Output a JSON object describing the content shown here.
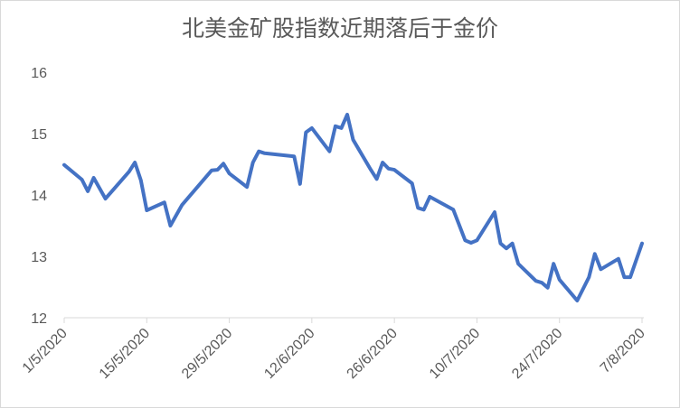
{
  "chart_data": {
    "type": "line",
    "title": "北美金矿股指数近期落后于金价",
    "x": [
      "1/5/2020",
      "4/5/2020",
      "5/5/2020",
      "6/5/2020",
      "8/5/2020",
      "12/5/2020",
      "13/5/2020",
      "14/5/2020",
      "15/5/2020",
      "18/5/2020",
      "19/5/2020",
      "21/5/2020",
      "26/5/2020",
      "27/5/2020",
      "28/5/2020",
      "29/5/2020",
      "1/6/2020",
      "2/6/2020",
      "3/6/2020",
      "4/6/2020",
      "9/6/2020",
      "10/6/2020",
      "11/6/2020",
      "12/6/2020",
      "15/6/2020",
      "16/6/2020",
      "17/6/2020",
      "18/6/2020",
      "19/6/2020",
      "22/6/2020",
      "23/6/2020",
      "24/6/2020",
      "25/6/2020",
      "26/6/2020",
      "29/6/2020",
      "30/6/2020",
      "1/7/2020",
      "2/7/2020",
      "6/7/2020",
      "8/7/2020",
      "9/7/2020",
      "10/7/2020",
      "13/7/2020",
      "14/7/2020",
      "15/7/2020",
      "16/7/2020",
      "17/7/2020",
      "20/7/2020",
      "21/7/2020",
      "22/7/2020",
      "23/7/2020",
      "24/7/2020",
      "27/7/2020",
      "29/7/2020",
      "30/7/2020",
      "31/7/2020",
      "3/8/2020",
      "4/8/2020",
      "5/8/2020",
      "7/8/2020"
    ],
    "series": [
      {
        "name": "北美金矿股指数",
        "color": "#4472c4",
        "values": [
          14.49,
          14.25,
          14.06,
          14.28,
          13.94,
          14.38,
          14.53,
          14.24,
          13.75,
          13.88,
          13.5,
          13.84,
          14.4,
          14.41,
          14.51,
          14.35,
          14.13,
          14.53,
          14.71,
          14.68,
          14.63,
          14.18,
          15.02,
          15.09,
          14.71,
          15.12,
          15.09,
          15.31,
          14.9,
          14.41,
          14.26,
          14.53,
          14.43,
          14.41,
          14.19,
          13.79,
          13.76,
          13.97,
          13.76,
          13.26,
          13.22,
          13.26,
          13.72,
          13.21,
          13.13,
          13.21,
          12.88,
          12.6,
          12.57,
          12.49,
          12.88,
          12.62,
          12.28,
          12.66,
          13.04,
          12.79,
          12.96,
          12.66,
          12.66,
          13.21
        ]
      }
    ],
    "xlim": [
      "1/5/2020",
      "7/8/2020"
    ],
    "xticks": [
      "1/5/2020",
      "15/5/2020",
      "29/5/2020",
      "12/6/2020",
      "26/6/2020",
      "10/7/2020",
      "24/7/2020",
      "7/8/2020"
    ],
    "ylim": [
      12,
      16
    ],
    "yticks": [
      12,
      13,
      14,
      15,
      16
    ],
    "grid": false
  }
}
